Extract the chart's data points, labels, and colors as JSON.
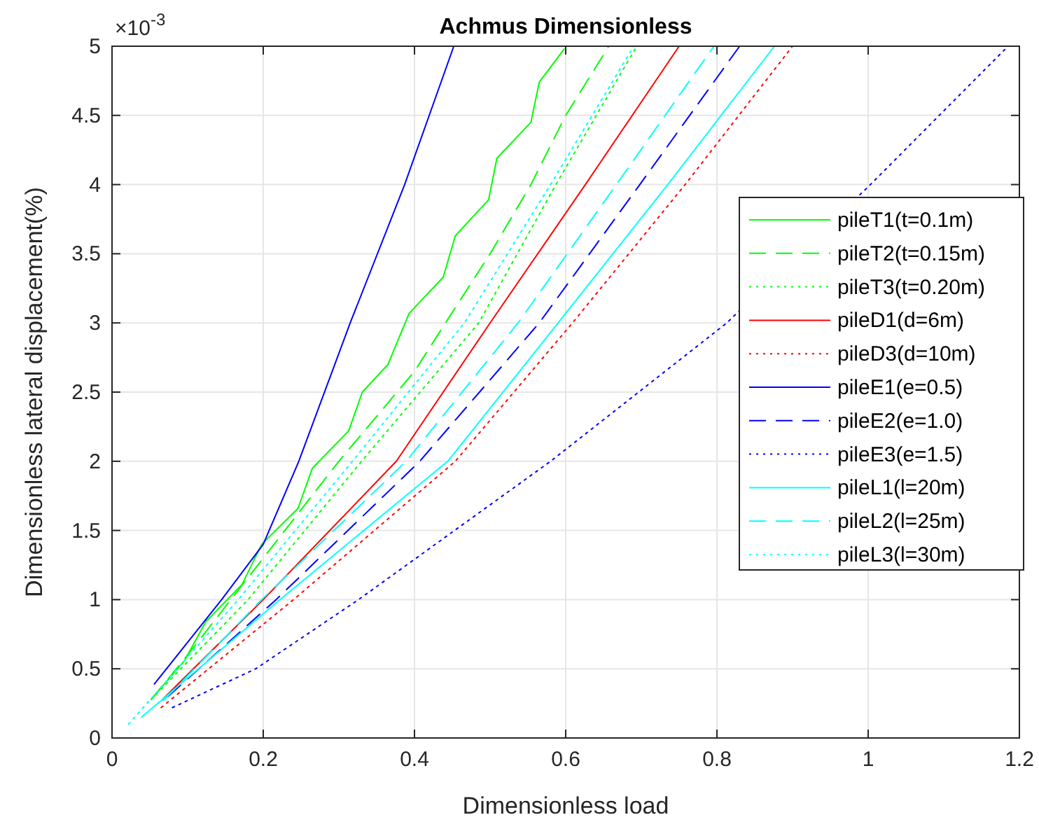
{
  "chart_data": {
    "type": "line",
    "title": "Achmus Dimensionless",
    "xlabel": "Dimensionless load",
    "ylabel": "Dimensionless lateral displacement(%)",
    "annotations": [
      "×10$^{-3}$"
    ],
    "xlim": [
      0,
      1.2
    ],
    "xticks": [
      0,
      0.2,
      0.4,
      0.6,
      0.8,
      1,
      1.2
    ],
    "ylim": [
      0,
      5
    ],
    "yticks": [
      0,
      0.5,
      1,
      1.5,
      2,
      2.5,
      3,
      3.5,
      4,
      4.5,
      5
    ],
    "grid": true,
    "legend": "right",
    "series": [
      {
        "name": "pileT1(t=0.1m)",
        "color": "#00ff00",
        "line_style": "solid",
        "x": [
          0.052,
          0.096,
          0.124,
          0.172,
          0.198,
          0.246,
          0.265,
          0.313,
          0.331,
          0.365,
          0.393,
          0.438,
          0.454,
          0.498,
          0.509,
          0.554,
          0.565,
          0.598
        ],
        "values": [
          0.28,
          0.56,
          0.84,
          1.11,
          1.4,
          1.66,
          1.95,
          2.22,
          2.5,
          2.7,
          3.07,
          3.33,
          3.63,
          3.89,
          4.19,
          4.45,
          4.74,
          4.98
        ]
      },
      {
        "name": "pileT2(t=0.15m)",
        "color": "#00ff00",
        "line_style": "dashed",
        "x": [
          0.052,
          0.1,
          0.2,
          0.3,
          0.4,
          0.441,
          0.5,
          0.554,
          0.6,
          0.657
        ],
        "values": [
          0.28,
          0.6,
          1.3,
          2,
          2.65,
          3,
          3.5,
          4,
          4.5,
          5
        ]
      },
      {
        "name": "pileT3(t=0.20m)",
        "color": "#00ff00",
        "line_style": "dotted",
        "x": [
          0.052,
          0.18,
          0.33,
          0.485,
          0.587,
          0.694
        ],
        "values": [
          0.28,
          1,
          2,
          3,
          4,
          5
        ]
      },
      {
        "name": "pileD1(d=6m)",
        "color": "#ff0000",
        "line_style": "solid",
        "x": [
          0.067,
          0.2,
          0.376,
          0.5,
          0.626,
          0.75
        ],
        "values": [
          0.28,
          1,
          2,
          3,
          4,
          5
        ]
      },
      {
        "name": "pileD3(d=10m)",
        "color": "#ff0000",
        "line_style": "dotted",
        "x": [
          0.065,
          0.24,
          0.454,
          0.609,
          0.758,
          0.9
        ],
        "values": [
          0.22,
          1,
          2,
          3,
          4,
          5
        ]
      },
      {
        "name": "pileE1(e=0.5)",
        "color": "#0000ff",
        "line_style": "solid",
        "x": [
          0.056,
          0.145,
          0.2,
          0.247,
          0.315,
          0.387,
          0.452
        ],
        "values": [
          0.39,
          1,
          1.4,
          2,
          3,
          4,
          5
        ]
      },
      {
        "name": "pileE2(e=1.0)",
        "color": "#0000ff",
        "line_style": "dashed",
        "x": [
          0.074,
          0.217,
          0.407,
          0.565,
          0.698,
          0.83
        ],
        "values": [
          0.3,
          1,
          2,
          3,
          4,
          5
        ]
      },
      {
        "name": "pileE3(e=1.5)",
        "color": "#0000ff",
        "line_style": "dotted",
        "x": [
          0.08,
          0.19,
          0.326,
          0.58,
          0.813,
          1.003,
          1.185
        ],
        "values": [
          0.22,
          0.5,
          1,
          2,
          3,
          4,
          5
        ]
      },
      {
        "name": "pileL1(l=20m)",
        "color": "#00ffff",
        "line_style": "solid",
        "x": [
          0.039,
          0.222,
          0.444,
          0.59,
          0.735,
          0.876
        ],
        "values": [
          0.15,
          1,
          2,
          3,
          4,
          5
        ]
      },
      {
        "name": "pileL2(l=25m)",
        "color": "#00ffff",
        "line_style": "dashed",
        "x": [
          0.068,
          0.198,
          0.389,
          0.537,
          0.667,
          0.796
        ],
        "values": [
          0.27,
          1,
          2,
          3,
          4,
          5
        ]
      },
      {
        "name": "pileL3(l=30m)",
        "color": "#00ffff",
        "line_style": "dotted",
        "x": [
          0.022,
          0.167,
          0.318,
          0.466,
          0.58,
          0.69
        ],
        "values": [
          0.1,
          1,
          2,
          3,
          4,
          5
        ]
      }
    ]
  }
}
